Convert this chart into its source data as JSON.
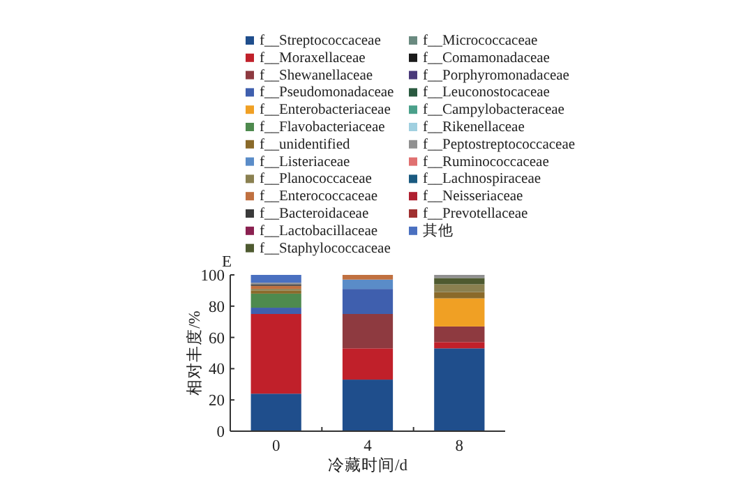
{
  "chart_data": {
    "type": "bar",
    "stacked": true,
    "xlabel": "冷藏时间/d",
    "ylabel": "相对丰度/%",
    "annotations": [
      "E"
    ],
    "categories": [
      "0",
      "4",
      "8"
    ],
    "ylim": [
      0,
      100
    ],
    "yticks": [
      0,
      20,
      40,
      60,
      80,
      100
    ],
    "legend": "top",
    "series": [
      {
        "name": "f__Streptococcaceae",
        "color": "#1f4e8c",
        "values": [
          24,
          33,
          53
        ]
      },
      {
        "name": "f__Moraxellaceae",
        "color": "#c0202a",
        "values": [
          51,
          20,
          4
        ]
      },
      {
        "name": "f__Shewanellaceae",
        "color": "#8e3a40",
        "values": [
          0,
          22,
          10
        ]
      },
      {
        "name": "f__Pseudomonadaceae",
        "color": "#3f5fae",
        "values": [
          4,
          16,
          0
        ]
      },
      {
        "name": "f__Enterobacteriaceae",
        "color": "#f0a024",
        "values": [
          0,
          0,
          18
        ]
      },
      {
        "name": "f__Flavobacteriaceae",
        "color": "#4e8a4e",
        "values": [
          9,
          0,
          0
        ]
      },
      {
        "name": "f__unidentified",
        "color": "#8a6a2a",
        "values": [
          2,
          0,
          4
        ]
      },
      {
        "name": "f__Listeriaceae",
        "color": "#5a8cc8",
        "values": [
          0,
          6,
          0
        ]
      },
      {
        "name": "f__Planococcaceae",
        "color": "#8a8050",
        "values": [
          1,
          0,
          5
        ]
      },
      {
        "name": "f__Enterococcaceae",
        "color": "#c07040",
        "values": [
          2,
          3,
          0
        ]
      },
      {
        "name": "f__Bacteroidaceae",
        "color": "#3a3a3a",
        "values": [
          1,
          0,
          0
        ]
      },
      {
        "name": "f__Lactobacillaceae",
        "color": "#8a2050",
        "values": [
          0,
          0,
          0
        ]
      },
      {
        "name": "f__Staphylococcaceae",
        "color": "#4e5a30",
        "values": [
          0,
          0,
          4
        ]
      },
      {
        "name": "f__Micrococcaceae",
        "color": "#6a8a80",
        "values": [
          0,
          0,
          0
        ]
      },
      {
        "name": "f__Comamonadaceae",
        "color": "#1a1a1a",
        "values": [
          0,
          0,
          0
        ]
      },
      {
        "name": "f__Porphyromonadaceae",
        "color": "#4a3a7a",
        "values": [
          0,
          0,
          0
        ]
      },
      {
        "name": "f__Leuconostocaceae",
        "color": "#2a5a40",
        "values": [
          0,
          0,
          0
        ]
      },
      {
        "name": "f__Campylobacteraceae",
        "color": "#4aa08a",
        "values": [
          0,
          0,
          0
        ]
      },
      {
        "name": "f__Rikenellaceae",
        "color": "#a0d0e0",
        "values": [
          0,
          0,
          0
        ]
      },
      {
        "name": "f__Peptostreptococcaceae",
        "color": "#909090",
        "values": [
          1,
          0,
          2
        ]
      },
      {
        "name": "f__Ruminococcaceae",
        "color": "#e07070",
        "values": [
          0,
          0,
          0
        ]
      },
      {
        "name": "f__Lachnospiraceae",
        "color": "#1a5a80",
        "values": [
          0,
          0,
          0
        ]
      },
      {
        "name": "f__Neisseriaceae",
        "color": "#b02030",
        "values": [
          0,
          0,
          0
        ]
      },
      {
        "name": "f__Prevotellaceae",
        "color": "#a03030",
        "values": [
          0,
          0,
          0
        ]
      },
      {
        "name": "其他",
        "color": "#4a70c0",
        "values": [
          5,
          0,
          0
        ]
      }
    ]
  }
}
